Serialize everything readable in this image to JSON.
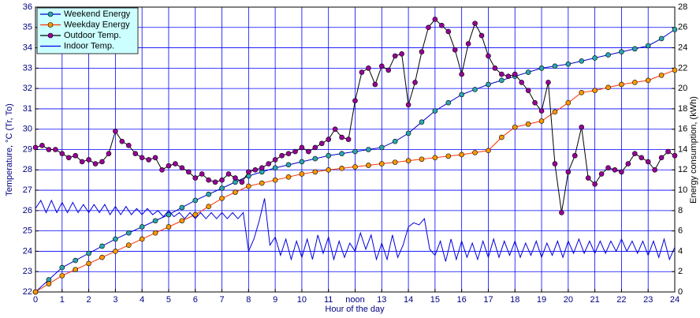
{
  "chart_data": {
    "type": "line",
    "xlabel": "Hour of the day",
    "ylabel": "Temperature, °C (Tr, To)",
    "y2label": "Energy consumption, (kWh)",
    "xlim": [
      0,
      24
    ],
    "xticks": [
      0,
      1,
      2,
      3,
      4,
      5,
      6,
      7,
      8,
      9,
      10,
      11,
      {
        "value": 12,
        "label": "noon"
      },
      13,
      14,
      15,
      16,
      17,
      18,
      19,
      20,
      21,
      22,
      23,
      24
    ],
    "ylim": [
      22,
      36
    ],
    "yticks": [
      22,
      23,
      24,
      25,
      26,
      27,
      28,
      29,
      30,
      31,
      32,
      33,
      34,
      35,
      36
    ],
    "y2lim": [
      0,
      28
    ],
    "y2ticks": [
      0,
      2,
      4,
      6,
      8,
      10,
      12,
      14,
      16,
      18,
      20,
      22,
      24,
      26,
      28
    ],
    "grid": true,
    "grid_color": "#0000ff",
    "legend": "upper-left",
    "series": [
      {
        "name": "Weekend Energy",
        "axis": "y2",
        "color": "#0000cc",
        "marker_color": "#2aa7b0",
        "x": [
          0,
          0.5,
          1,
          1.5,
          2,
          2.5,
          3,
          3.5,
          4,
          4.5,
          5,
          5.5,
          6,
          6.5,
          7,
          7.5,
          8,
          8.5,
          9,
          9.5,
          10,
          10.5,
          11,
          11.5,
          12,
          12.5,
          13,
          13.5,
          14,
          14.5,
          15,
          15.5,
          16,
          16.5,
          17,
          17.5,
          18,
          18.5,
          19,
          19.5,
          20,
          20.5,
          21,
          21.5,
          22,
          22.5,
          23,
          23.5,
          24
        ],
        "values": [
          0,
          1.2,
          2.4,
          3.1,
          3.8,
          4.5,
          5.2,
          5.8,
          6.4,
          7.0,
          7.6,
          8.3,
          9.0,
          9.6,
          10.2,
          10.8,
          11.4,
          11.8,
          12.2,
          12.5,
          12.8,
          13.1,
          13.4,
          13.6,
          13.8,
          14.0,
          14.2,
          14.8,
          15.6,
          16.7,
          17.8,
          18.6,
          19.4,
          19.9,
          20.4,
          20.8,
          21.2,
          21.6,
          22.0,
          22.2,
          22.4,
          22.7,
          23.0,
          23.3,
          23.6,
          23.9,
          24.2,
          24.9,
          25.8
        ]
      },
      {
        "name": "Weekday Energy",
        "axis": "y2",
        "color": "#ff3300",
        "marker_color": "#ff9900",
        "x": [
          0,
          0.5,
          1,
          1.5,
          2,
          2.5,
          3,
          3.5,
          4,
          4.5,
          5,
          5.5,
          6,
          6.5,
          7,
          7.5,
          8,
          8.5,
          9,
          9.5,
          10,
          10.5,
          11,
          11.5,
          12,
          12.5,
          13,
          13.5,
          14,
          14.5,
          15,
          15.5,
          16,
          16.5,
          17,
          17.5,
          18,
          18.5,
          19,
          19.5,
          20,
          20.5,
          21,
          21.5,
          22,
          22.5,
          23,
          23.5,
          24
        ],
        "values": [
          0,
          0.8,
          1.6,
          2.2,
          2.8,
          3.4,
          4.0,
          4.6,
          5.2,
          5.8,
          6.4,
          7.0,
          7.6,
          8.4,
          9.2,
          9.8,
          10.4,
          10.7,
          11.0,
          11.3,
          11.6,
          11.8,
          12.0,
          12.15,
          12.3,
          12.45,
          12.6,
          12.75,
          12.9,
          13.05,
          13.2,
          13.35,
          13.5,
          13.7,
          13.9,
          15.2,
          16.2,
          16.5,
          16.8,
          17.7,
          18.6,
          19.6,
          19.8,
          20.1,
          20.4,
          20.6,
          20.8,
          21.3,
          21.8
        ]
      },
      {
        "name": "Outdoor Temp.",
        "color": "#000000",
        "marker_color": "#990099",
        "x": [
          0,
          0.25,
          0.5,
          0.75,
          1,
          1.25,
          1.5,
          1.75,
          2,
          2.25,
          2.5,
          2.75,
          3,
          3.25,
          3.5,
          3.75,
          4,
          4.25,
          4.5,
          4.75,
          5,
          5.25,
          5.5,
          5.75,
          6,
          6.25,
          6.5,
          6.75,
          7,
          7.25,
          7.5,
          7.75,
          8,
          8.25,
          8.5,
          8.75,
          9,
          9.25,
          9.5,
          9.75,
          10,
          10.25,
          10.5,
          10.75,
          11,
          11.25,
          11.5,
          11.75,
          12,
          12.25,
          12.5,
          12.75,
          13,
          13.25,
          13.5,
          13.75,
          14,
          14.25,
          14.5,
          14.75,
          15,
          15.25,
          15.5,
          15.75,
          16,
          16.25,
          16.5,
          16.75,
          17,
          17.25,
          17.5,
          17.75,
          18,
          18.25,
          18.5,
          18.75,
          19,
          19.25,
          19.5,
          19.75,
          20,
          20.25,
          20.5,
          20.75,
          21,
          21.25,
          21.5,
          21.75,
          22,
          22.25,
          22.5,
          22.75,
          23,
          23.25,
          23.5,
          23.75,
          24
        ],
        "values": [
          29.1,
          29.2,
          29.0,
          29.0,
          28.8,
          28.6,
          28.7,
          28.4,
          28.5,
          28.3,
          28.4,
          28.8,
          29.9,
          29.4,
          29.2,
          28.8,
          28.6,
          28.5,
          28.6,
          28.0,
          28.2,
          28.3,
          28.1,
          27.9,
          27.6,
          27.8,
          27.5,
          27.4,
          27.5,
          27.8,
          27.6,
          27.4,
          27.9,
          28.0,
          28.1,
          28.3,
          28.5,
          28.7,
          28.8,
          28.9,
          29.1,
          28.9,
          29.1,
          29.3,
          29.5,
          30.0,
          29.6,
          29.5,
          31.4,
          32.8,
          33.0,
          32.2,
          33.1,
          32.9,
          33.6,
          33.7,
          31.2,
          32.3,
          33.8,
          35.0,
          35.4,
          35.1,
          34.8,
          33.9,
          32.7,
          34.2,
          35.2,
          34.6,
          33.6,
          33.0,
          32.7,
          32.6,
          32.7,
          32.3,
          31.9,
          31.3,
          30.9,
          32.3,
          28.3,
          25.9,
          27.9,
          28.7,
          30.1,
          27.6,
          27.3,
          27.8,
          28.1,
          28.0,
          27.9,
          28.3,
          28.8,
          28.6,
          28.4,
          28.0,
          28.6,
          28.9,
          28.7
        ]
      },
      {
        "name": "Indoor Temp.",
        "color": "#0000dd",
        "x": [
          0,
          0.2,
          0.4,
          0.6,
          0.8,
          1,
          1.2,
          1.4,
          1.6,
          1.8,
          2,
          2.2,
          2.4,
          2.6,
          2.8,
          3,
          3.2,
          3.4,
          3.6,
          3.8,
          4,
          4.2,
          4.4,
          4.6,
          4.8,
          5,
          5.2,
          5.4,
          5.6,
          5.8,
          6,
          6.2,
          6.4,
          6.6,
          6.8,
          7,
          7.2,
          7.4,
          7.6,
          7.8,
          8,
          8.2,
          8.4,
          8.6,
          8.8,
          9,
          9.2,
          9.4,
          9.6,
          9.8,
          10,
          10.2,
          10.4,
          10.6,
          10.8,
          11,
          11.2,
          11.4,
          11.6,
          11.8,
          12,
          12.2,
          12.4,
          12.6,
          12.8,
          13,
          13.2,
          13.4,
          13.6,
          13.8,
          14,
          14.2,
          14.4,
          14.6,
          14.8,
          15,
          15.2,
          15.4,
          15.6,
          15.8,
          16,
          16.2,
          16.4,
          16.6,
          16.8,
          17,
          17.2,
          17.4,
          17.6,
          17.8,
          18,
          18.2,
          18.4,
          18.6,
          18.8,
          19,
          19.2,
          19.4,
          19.6,
          19.8,
          20,
          20.2,
          20.4,
          20.6,
          20.8,
          21,
          21.2,
          21.4,
          21.6,
          21.8,
          22,
          22.2,
          22.4,
          22.6,
          22.8,
          23,
          23.2,
          23.4,
          23.6,
          23.8,
          24
        ],
        "values": [
          26.1,
          26.5,
          25.9,
          26.5,
          25.9,
          26.4,
          25.9,
          26.4,
          25.9,
          26.3,
          25.9,
          26.3,
          25.9,
          26.3,
          25.8,
          26.2,
          25.8,
          26.2,
          25.8,
          26.1,
          25.8,
          26.1,
          25.8,
          26.0,
          25.7,
          26.0,
          25.7,
          25.9,
          25.6,
          25.9,
          25.6,
          25.9,
          25.6,
          25.9,
          25.6,
          25.9,
          25.6,
          25.9,
          25.6,
          25.9,
          24.0,
          24.6,
          25.5,
          26.6,
          24.3,
          24.7,
          23.8,
          24.6,
          23.6,
          24.5,
          23.7,
          24.6,
          23.6,
          24.8,
          23.9,
          24.7,
          23.6,
          24.5,
          23.7,
          24.4,
          24.0,
          24.9,
          24.1,
          24.8,
          23.6,
          24.4,
          23.6,
          24.8,
          23.7,
          24.3,
          25.2,
          25.4,
          25.3,
          25.6,
          24.1,
          23.8,
          24.5,
          23.5,
          24.6,
          23.6,
          24.5,
          23.7,
          24.4,
          23.6,
          24.5,
          23.7,
          24.6,
          23.7,
          24.5,
          23.8,
          24.5,
          23.7,
          24.4,
          23.8,
          24.5,
          23.7,
          24.4,
          23.8,
          24.5,
          23.7,
          24.5,
          23.9,
          24.6,
          23.9,
          24.5,
          23.9,
          24.5,
          23.9,
          24.5,
          24.0,
          24.6,
          24.0,
          24.5,
          23.9,
          24.5,
          23.8,
          24.5,
          23.7,
          24.6,
          23.6,
          24.2
        ]
      }
    ]
  }
}
